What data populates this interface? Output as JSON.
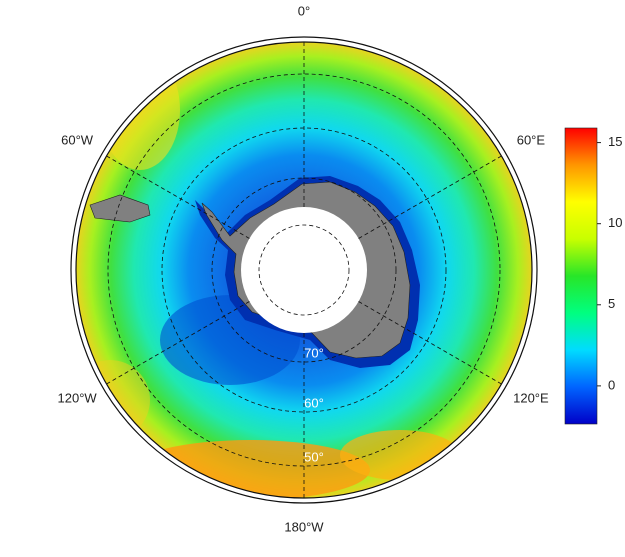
{
  "map": {
    "projection": "south-polar-stereographic",
    "longitude_labels": [
      "0°",
      "60°E",
      "120°E",
      "180°W",
      "120°W",
      "60°W"
    ],
    "latitude_labels": [
      "70°",
      "60°",
      "50°"
    ]
  },
  "colorbar": {
    "lim": [
      -2.35,
      15.9
    ],
    "ticks": [
      15,
      10,
      5,
      0
    ],
    "colors": [
      "#0000c8",
      "#0064ff",
      "#00dcff",
      "#00ff80",
      "#28e628",
      "#c8ff00",
      "#ffff00",
      "#ff9600",
      "#ff0000"
    ]
  }
}
